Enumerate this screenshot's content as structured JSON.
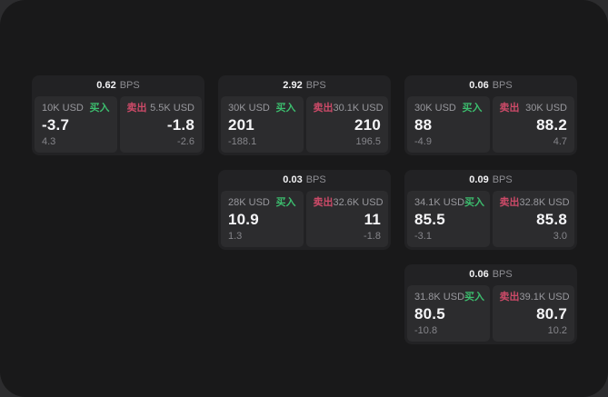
{
  "labels": {
    "bps_suffix": "BPS",
    "buy": "买入",
    "sell": "卖出"
  },
  "colors": {
    "buy_green": "#3cbd6e",
    "sell_red": "#cc4a68",
    "panel_bg": "#19191a",
    "card_bg": "#222224",
    "subpanel_bg": "#2c2c2e"
  },
  "cards": [
    {
      "bps": "0.62",
      "row": 1,
      "col": 1,
      "buy": {
        "amount": "10K USD",
        "price": "-3.7",
        "delta": "4.3"
      },
      "sell": {
        "amount": "5.5K USD",
        "price": "-1.8",
        "delta": "-2.6"
      }
    },
    {
      "bps": "2.92",
      "row": 1,
      "col": 2,
      "buy": {
        "amount": "30K USD",
        "price": "201",
        "delta": "-188.1"
      },
      "sell": {
        "amount": "30.1K USD",
        "price": "210",
        "delta": "196.5"
      }
    },
    {
      "bps": "0.06",
      "row": 1,
      "col": 3,
      "buy": {
        "amount": "30K USD",
        "price": "88",
        "delta": "-4.9"
      },
      "sell": {
        "amount": "30K USD",
        "price": "88.2",
        "delta": "4.7"
      }
    },
    {
      "bps": "0.03",
      "row": 2,
      "col": 2,
      "buy": {
        "amount": "28K USD",
        "price": "10.9",
        "delta": "1.3"
      },
      "sell": {
        "amount": "32.6K USD",
        "price": "11",
        "delta": "-1.8"
      }
    },
    {
      "bps": "0.09",
      "row": 2,
      "col": 3,
      "buy": {
        "amount": "34.1K USD",
        "price": "85.5",
        "delta": "-3.1"
      },
      "sell": {
        "amount": "32.8K USD",
        "price": "85.8",
        "delta": "3.0"
      }
    },
    {
      "bps": "0.06",
      "row": 3,
      "col": 3,
      "buy": {
        "amount": "31.8K USD",
        "price": "80.5",
        "delta": "-10.8"
      },
      "sell": {
        "amount": "39.1K USD",
        "price": "80.7",
        "delta": "10.2"
      }
    }
  ]
}
